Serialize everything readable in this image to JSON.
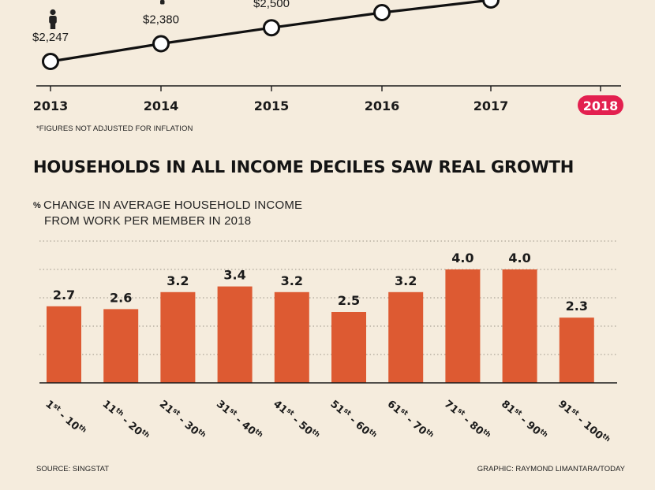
{
  "top_chart": {
    "years": [
      "2013",
      "2014",
      "2015",
      "2016",
      "2017",
      "2018"
    ],
    "values": [
      2247,
      2380,
      2500,
      null,
      null,
      null
    ],
    "value_labels": [
      "$2,247",
      "$2,380",
      "$2,500",
      "",
      "",
      ""
    ],
    "highlight_year": "2018",
    "highlight_color": "#e3204f",
    "footnote": "*FIGURES NOT ADJUSTED FOR INFLATION"
  },
  "chart_data": {
    "type": "bar",
    "title": "HOUSEHOLDS IN ALL INCOME DECILES SAW REAL GROWTH",
    "subtitle_symbol": "%",
    "subtitle_line1": "CHANGE IN AVERAGE HOUSEHOLD INCOME",
    "subtitle_line2": "FROM WORK PER MEMBER IN 2018",
    "categories": [
      {
        "a": "1",
        "as": "st",
        "b": "10",
        "bs": "th"
      },
      {
        "a": "11",
        "as": "th",
        "b": "20",
        "bs": "th"
      },
      {
        "a": "21",
        "as": "st",
        "b": "30",
        "bs": "th"
      },
      {
        "a": "31",
        "as": "st",
        "b": "40",
        "bs": "th"
      },
      {
        "a": "41",
        "as": "st",
        "b": "50",
        "bs": "th"
      },
      {
        "a": "51",
        "as": "st",
        "b": "60",
        "bs": "th"
      },
      {
        "a": "61",
        "as": "st",
        "b": "70",
        "bs": "th"
      },
      {
        "a": "71",
        "as": "st",
        "b": "80",
        "bs": "th"
      },
      {
        "a": "81",
        "as": "st",
        "b": "90",
        "bs": "th"
      },
      {
        "a": "91",
        "as": "st",
        "b": "100",
        "bs": "th"
      }
    ],
    "values": [
      2.7,
      2.6,
      3.2,
      3.4,
      3.2,
      2.5,
      3.2,
      4.0,
      4.0,
      2.3
    ],
    "value_labels": [
      "2.7",
      "2.6",
      "3.2",
      "3.4",
      "3.2",
      "2.5",
      "3.2",
      "4.0",
      "4.0",
      "2.3"
    ],
    "ylim": [
      0,
      5
    ],
    "grid": true,
    "bar_color": "#dd5a32"
  },
  "footer": {
    "source": "SOURCE: SINGSTAT",
    "credit": "GRAPHIC: RAYMOND LIMANTARA/TODAY"
  }
}
